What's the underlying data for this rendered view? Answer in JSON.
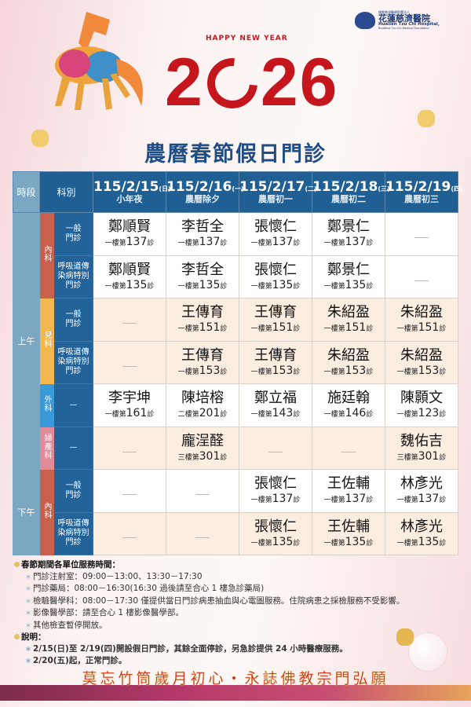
{
  "logo": {
    "org": "佛教慈濟醫療財團法人",
    "name": "花蓮慈濟醫院",
    "en": "Hualien Tzu Chi Hospital,",
    "foundation": "Buddhist Tzu Chi Medical Foundation"
  },
  "banner": {
    "year_left": "2",
    "year_right": "26",
    "greeting": "HAPPY NEW YEAR"
  },
  "title": "農曆春節假日門診",
  "table": {
    "period_header": "時段",
    "dept_header": "科別",
    "dates": [
      {
        "date": "115/2/15",
        "weekday": "(日)",
        "note": "小年夜"
      },
      {
        "date": "115/2/16",
        "weekday": "(一)",
        "note": "農曆除夕"
      },
      {
        "date": "115/2/17",
        "weekday": "(二)",
        "note": "農曆初一"
      },
      {
        "date": "115/2/18",
        "weekday": "(三)",
        "note": "農曆初二"
      },
      {
        "date": "115/2/19",
        "weekday": "(四)",
        "note": "農曆初三"
      }
    ],
    "periods": {
      "am": "上午",
      "pm": "下午"
    },
    "depts": {
      "internal": "內科",
      "pediatrics": "兒科",
      "surgery": "外科",
      "obgyn": "婦產科"
    },
    "subs": {
      "general": "一般門診",
      "respiratory": "呼吸道傳染病特別門診",
      "none": "—"
    },
    "room_prefix": "第",
    "room_suffix": "診",
    "rows": [
      {
        "cells": [
          {
            "doc": "鄭順賢",
            "floor": "一樓",
            "room": "137"
          },
          {
            "doc": "李哲全",
            "floor": "一樓",
            "room": "137"
          },
          {
            "doc": "張懷仁",
            "floor": "一樓",
            "room": "137"
          },
          {
            "doc": "鄭景仁",
            "floor": "一樓",
            "room": "137"
          },
          null
        ]
      },
      {
        "cells": [
          {
            "doc": "鄭順賢",
            "floor": "一樓",
            "room": "135"
          },
          {
            "doc": "李哲全",
            "floor": "一樓",
            "room": "135"
          },
          {
            "doc": "張懷仁",
            "floor": "一樓",
            "room": "135"
          },
          {
            "doc": "鄭景仁",
            "floor": "一樓",
            "room": "135"
          },
          null
        ]
      },
      {
        "cells": [
          null,
          {
            "doc": "王傳育",
            "floor": "一樓",
            "room": "151"
          },
          {
            "doc": "王傳育",
            "floor": "一樓",
            "room": "151"
          },
          {
            "doc": "朱紹盈",
            "floor": "一樓",
            "room": "151"
          },
          {
            "doc": "朱紹盈",
            "floor": "一樓",
            "room": "151"
          }
        ]
      },
      {
        "cells": [
          null,
          {
            "doc": "王傳育",
            "floor": "一樓",
            "room": "153"
          },
          {
            "doc": "王傳育",
            "floor": "一樓",
            "room": "153"
          },
          {
            "doc": "朱紹盈",
            "floor": "一樓",
            "room": "153"
          },
          {
            "doc": "朱紹盈",
            "floor": "一樓",
            "room": "153"
          }
        ]
      },
      {
        "cells": [
          {
            "doc": "李宇坤",
            "floor": "一樓",
            "room": "161"
          },
          {
            "doc": "陳培榕",
            "floor": "二樓",
            "room": "201"
          },
          {
            "doc": "鄭立福",
            "floor": "一樓",
            "room": "143"
          },
          {
            "doc": "施廷翰",
            "floor": "一樓",
            "room": "146"
          },
          {
            "doc": "陳顥文",
            "floor": "一樓",
            "room": "123"
          }
        ]
      },
      {
        "cells": [
          null,
          {
            "doc": "龐浧醛",
            "floor": "三樓",
            "room": "301"
          },
          null,
          null,
          {
            "doc": "魏佑吉",
            "floor": "三樓",
            "room": "301"
          }
        ]
      },
      {
        "cells": [
          null,
          null,
          {
            "doc": "張懷仁",
            "floor": "一樓",
            "room": "137"
          },
          {
            "doc": "王佐輔",
            "floor": "一樓",
            "room": "137"
          },
          {
            "doc": "林彥光",
            "floor": "一樓",
            "room": "137"
          }
        ]
      },
      {
        "cells": [
          null,
          null,
          {
            "doc": "張懷仁",
            "floor": "一樓",
            "room": "135"
          },
          {
            "doc": "王佐輔",
            "floor": "一樓",
            "room": "135"
          },
          {
            "doc": "林彥光",
            "floor": "一樓",
            "room": "135"
          }
        ]
      }
    ]
  },
  "notes": {
    "hours_title": "春節期間各單位服務時間：",
    "hours": [
      "門診注射室：09:00－13:00、13:30－17:30",
      "門診藥局：08:00－16:30(16:30 過後請至合心 1 樓急診藥局)",
      "檢驗醫學科：08:00－17:30 僅提供當日門診病患抽血與心電圖服務。住院病患之採檢服務不受影響。",
      "影像醫學部：請至合心 1 樓影像醫學部。",
      "其他檢查暫停開放。"
    ],
    "explain_title": "說明：",
    "explain": [
      "2/15(日)至 2/19(四)開設假日門診，其餘全面停診，另急診提供 24 小時醫療服務。",
      "2/20(五)起，正常門診。"
    ]
  },
  "slogan": "莫忘竹筒歲月初心・永誌佛教宗門弘願",
  "colors": {
    "header": "#1f5f93",
    "period": "#7ba7c2",
    "internal": "#c8604e",
    "pediatrics": "#f2b84f",
    "surgery": "#3a9ad9",
    "obgyn": "#e08a9a",
    "accent": "#c4161c",
    "cream": "#fbeee1"
  }
}
